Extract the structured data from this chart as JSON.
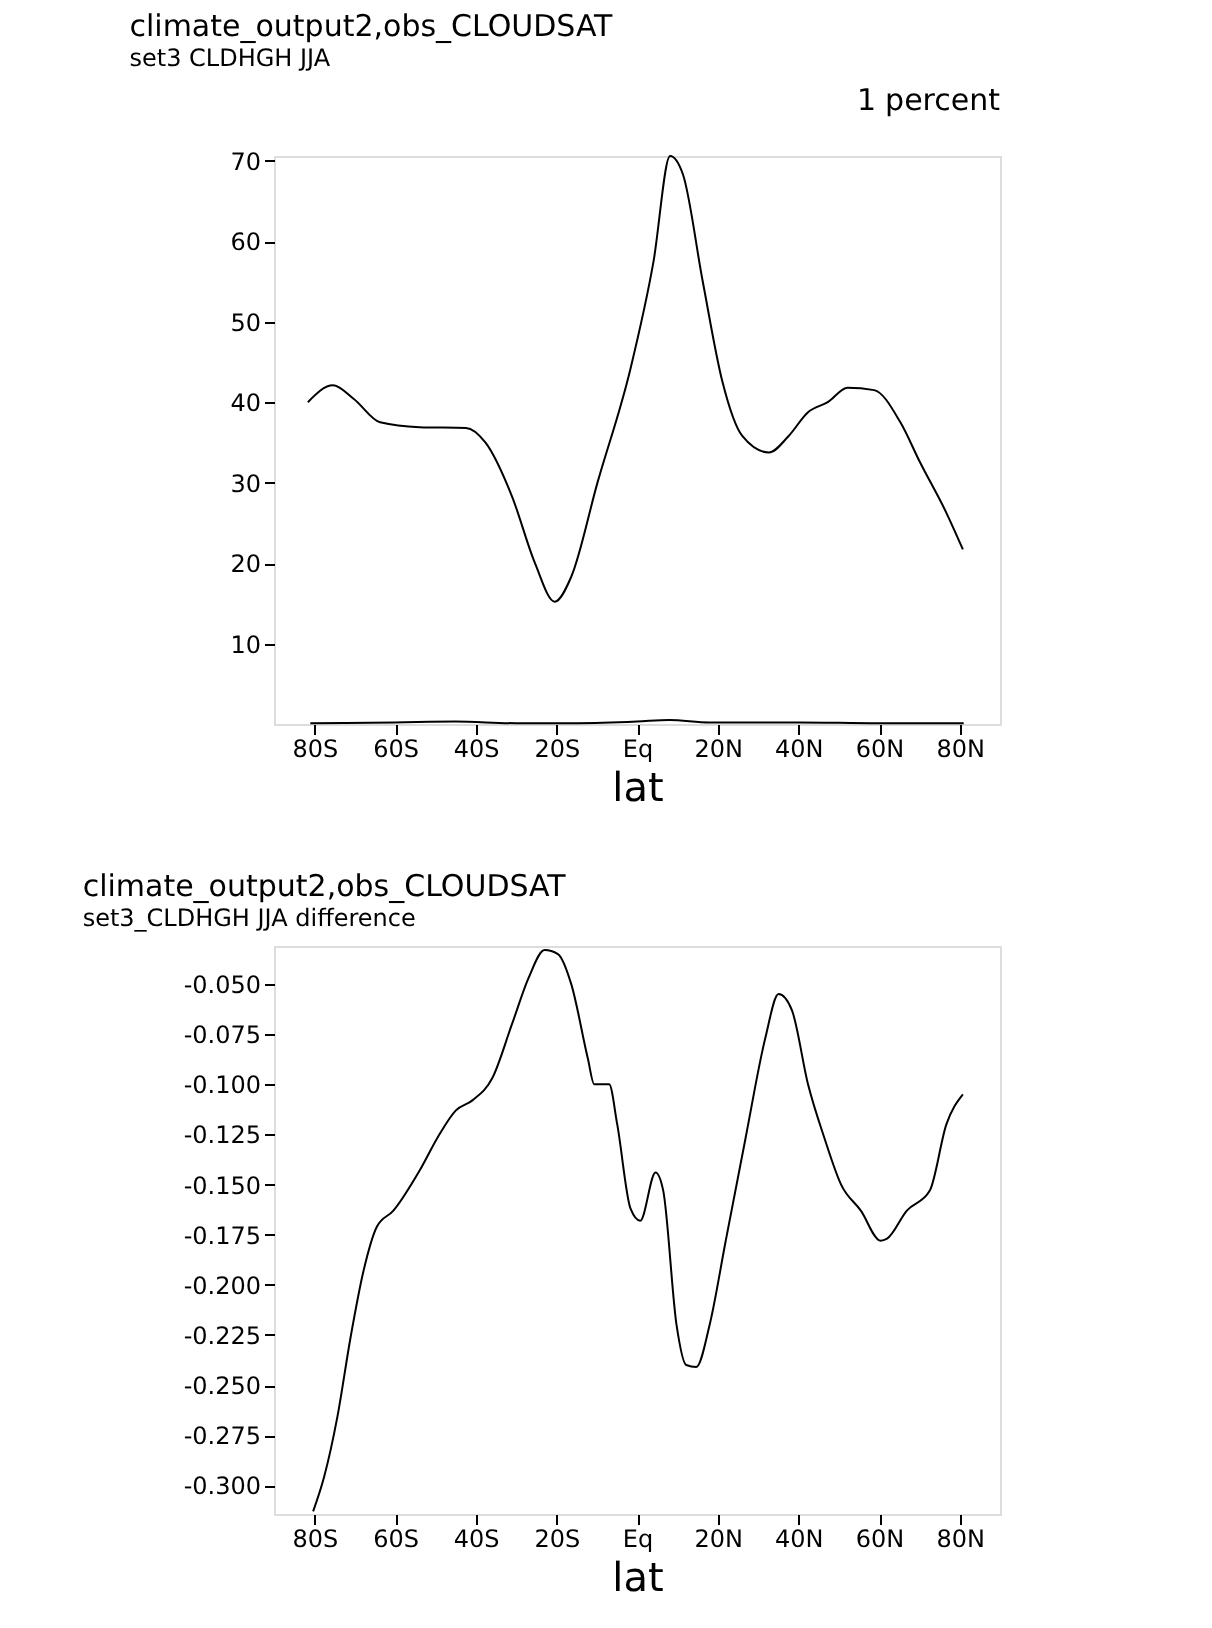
{
  "chart_data": [
    {
      "type": "line",
      "title": "climate_output2,obs_CLOUDSAT",
      "subtitle": "set3 CLDHGH JJA",
      "xlabel": "lat",
      "ylabel": "percent",
      "annotations": [
        "1"
      ],
      "xlim": [
        -90,
        90
      ],
      "ylim": [
        0,
        70.6
      ],
      "xticks": [
        {
          "value": -80,
          "label": "80S"
        },
        {
          "value": -60,
          "label": "60S"
        },
        {
          "value": -40,
          "label": "40S"
        },
        {
          "value": -20,
          "label": "20S"
        },
        {
          "value": 0,
          "label": "Eq"
        },
        {
          "value": 20,
          "label": "20N"
        },
        {
          "value": 40,
          "label": "40N"
        },
        {
          "value": 60,
          "label": "60N"
        },
        {
          "value": 80,
          "label": "80N"
        }
      ],
      "yticks": [
        10,
        20,
        30,
        40,
        50,
        60,
        70
      ],
      "grid": false,
      "marker": "none",
      "line_style": "solid",
      "series": [
        {
          "color": "#000000",
          "x": [
            -81.6,
            -75.4,
            -70.2,
            -63.7,
            -53.9,
            -42.4,
            -37.6,
            -31,
            -25.3,
            -20.4,
            -16.3,
            -9.8,
            -1.6,
            4.1,
            8.2,
            11.4,
            16.3,
            21.2,
            26.1,
            32.7,
            37.6,
            42.4,
            47.3,
            52.2,
            58.8,
            65.3,
            70.2,
            76.7,
            80.8
          ],
          "values": [
            40,
            42.1,
            40.4,
            37.5,
            36.9,
            36.8,
            35,
            28.3,
            20,
            15.2,
            18.3,
            30,
            44.2,
            57.5,
            70.6,
            68.3,
            55,
            42.5,
            35.8,
            33.75,
            35.8,
            38.75,
            40,
            41.8,
            41.5,
            37.5,
            32.5,
            26.25,
            21.7
          ]
        },
        {
          "color": "#000000",
          "x": [
            -81,
            -60,
            -45,
            -30,
            -15,
            0,
            8,
            18,
            40,
            60,
            81
          ],
          "values": [
            0.1,
            0.2,
            0.3,
            0.1,
            0.1,
            0.3,
            0.5,
            0.2,
            0.2,
            0.1,
            0.1
          ]
        }
      ]
    },
    {
      "type": "line",
      "title": "climate_output2,obs_CLOUDSAT",
      "subtitle": "set3_CLDHGH JJA difference",
      "xlabel": "lat",
      "xlim": [
        -90,
        90
      ],
      "ylim": [
        -0.3143,
        -0.031
      ],
      "xticks": [
        {
          "value": -80,
          "label": "80S"
        },
        {
          "value": -60,
          "label": "60S"
        },
        {
          "value": -40,
          "label": "40S"
        },
        {
          "value": -20,
          "label": "20S"
        },
        {
          "value": 0,
          "label": "Eq"
        },
        {
          "value": 20,
          "label": "20N"
        },
        {
          "value": 40,
          "label": "40N"
        },
        {
          "value": 60,
          "label": "60N"
        },
        {
          "value": 80,
          "label": "80N"
        }
      ],
      "yticks": [
        {
          "value": -0.05,
          "label": "-0.050"
        },
        {
          "value": -0.075,
          "label": "-0.075"
        },
        {
          "value": -0.1,
          "label": "-0.100"
        },
        {
          "value": -0.125,
          "label": "-0.125"
        },
        {
          "value": -0.15,
          "label": "-0.150"
        },
        {
          "value": -0.175,
          "label": "-0.175"
        },
        {
          "value": -0.2,
          "label": "-0.200"
        },
        {
          "value": -0.225,
          "label": "-0.225"
        },
        {
          "value": -0.25,
          "label": "-0.250"
        },
        {
          "value": -0.275,
          "label": "-0.275"
        },
        {
          "value": -0.3,
          "label": "-0.300"
        }
      ],
      "grid": false,
      "marker": "none",
      "line_style": "solid",
      "series": [
        {
          "color": "#000000",
          "x": [
            -80.3,
            -77.6,
            -74.3,
            -71,
            -67.8,
            -64.5,
            -60.4,
            -53.9,
            -49,
            -44.9,
            -40.8,
            -35.9,
            -31,
            -26.9,
            -22.9,
            -19.6,
            -16.3,
            -12.2,
            -10.6,
            -6.9,
            -4.9,
            -1.6,
            0.8,
            4.6,
            6.5,
            9.8,
            12.2,
            14.7,
            18,
            22,
            26.9,
            31.8,
            35.1,
            38.4,
            42.4,
            46.5,
            50.6,
            55.5,
            60.4,
            62,
            66.9,
            72.6,
            76.7,
            80.8
          ],
          "values": [
            -0.313,
            -0.296,
            -0.266,
            -0.226,
            -0.193,
            -0.171,
            -0.163,
            -0.143,
            -0.125,
            -0.113,
            -0.108,
            -0.097,
            -0.07,
            -0.047,
            -0.033,
            -0.035,
            -0.05,
            -0.087,
            -0.1,
            -0.1,
            -0.12,
            -0.162,
            -0.168,
            -0.144,
            -0.153,
            -0.22,
            -0.24,
            -0.241,
            -0.22,
            -0.178,
            -0.127,
            -0.077,
            -0.055,
            -0.063,
            -0.1,
            -0.127,
            -0.15,
            -0.163,
            -0.178,
            -0.177,
            -0.163,
            -0.153,
            -0.12,
            -0.105
          ]
        }
      ]
    }
  ]
}
